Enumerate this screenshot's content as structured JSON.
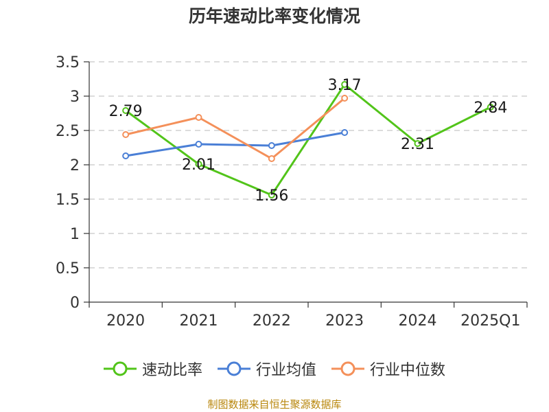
{
  "chart_data": {
    "type": "line",
    "title": "历年速动比率变化情况",
    "categories": [
      "2020",
      "2021",
      "2022",
      "2023",
      "2024",
      "2025Q1"
    ],
    "ylim": [
      0,
      3.5
    ],
    "yticks": [
      "0",
      "0.5",
      "1",
      "1.5",
      "2",
      "2.5",
      "3",
      "3.5"
    ],
    "grid": true,
    "legend_position": "bottom",
    "series": [
      {
        "name": "速动比率",
        "color": "#52c41a",
        "labeled": true,
        "values": [
          2.79,
          2.01,
          1.56,
          3.17,
          2.31,
          2.84
        ],
        "labels": [
          "2.79",
          "2.01",
          "1.56",
          "3.17",
          "2.31",
          "2.84"
        ]
      },
      {
        "name": "行业均值",
        "color": "#4a7fd6",
        "labeled": false,
        "values": [
          2.13,
          2.3,
          2.28,
          2.47,
          null,
          null
        ]
      },
      {
        "name": "行业中位数",
        "color": "#f4905a",
        "labeled": false,
        "values": [
          2.44,
          2.69,
          2.09,
          2.97,
          null,
          null
        ]
      }
    ]
  },
  "source_note": "制图数据来自恒生聚源数据库"
}
